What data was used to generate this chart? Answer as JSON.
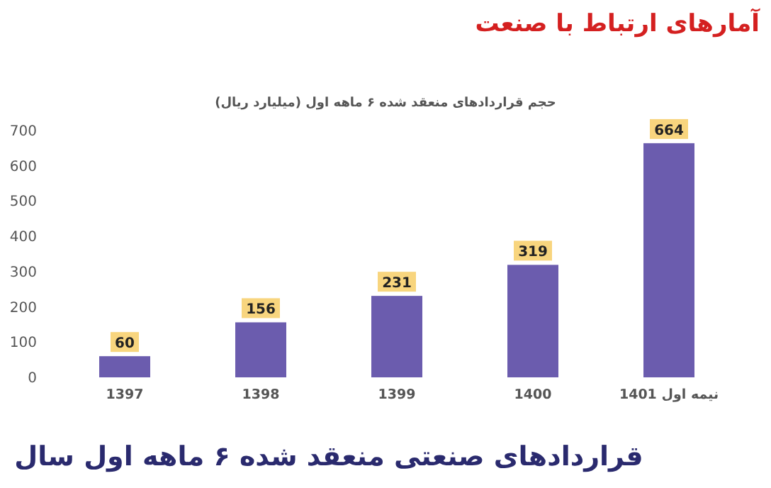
{
  "chart_data": {
    "type": "bar",
    "title": "حجم قراردادهای منعقد شده ۶ ماهه اول (میلیارد ریال)",
    "subtitle": "آمارهای ارتباط با صنعت",
    "categories": [
      "1397",
      "1398",
      "1399",
      "1400",
      "نیمه اول 1401"
    ],
    "values": [
      60,
      156,
      231,
      319,
      664
    ],
    "color": "#6b5cae",
    "ylim": [
      0,
      700
    ],
    "yticks": [
      0,
      100,
      200,
      300,
      400,
      500,
      600,
      700
    ],
    "data_labels": true,
    "grid": false,
    "legend": false,
    "annotations": [
      "قراردادهای صنعتی منعقد شده ۶ ماهه اول سال"
    ]
  }
}
